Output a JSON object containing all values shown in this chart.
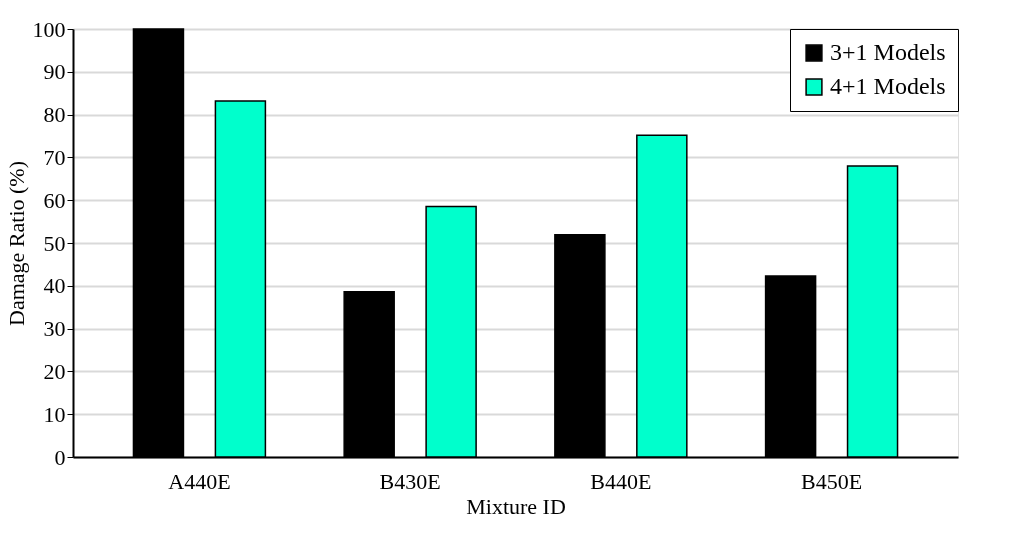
{
  "chart_data": {
    "type": "bar",
    "xlabel": "Mixture ID",
    "ylabel": "Damage Ratio (%)",
    "categories": [
      "A440E",
      "B430E",
      "B440E",
      "B450E"
    ],
    "series": [
      {
        "name": "3+1 Models",
        "color": "#000000",
        "values": [
          100,
          38.6,
          51.9,
          42.3
        ]
      },
      {
        "name": "4+1 Models",
        "color": "#00ffcc",
        "values": [
          83.2,
          58.5,
          75.2,
          68.0
        ]
      }
    ],
    "ylim": [
      0,
      100
    ],
    "yticks": [
      0,
      10,
      20,
      30,
      40,
      50,
      60,
      70,
      80,
      90,
      100
    ],
    "grid": "y",
    "legend": "top right"
  }
}
